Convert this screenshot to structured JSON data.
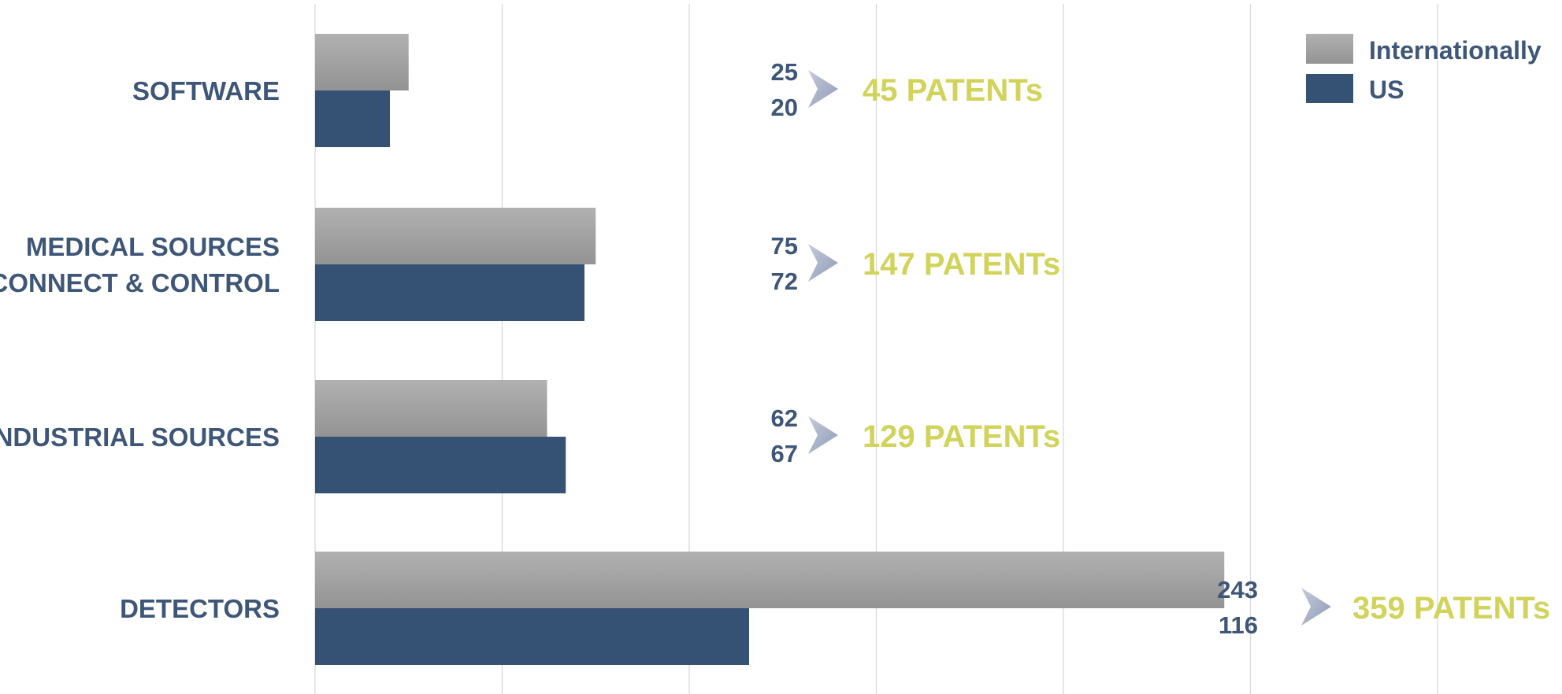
{
  "chart_data": {
    "type": "bar",
    "orientation": "horizontal",
    "categories": [
      [
        "SOFTWARE"
      ],
      [
        "MEDICAL SOURCES",
        "CONNECT & CONTROL"
      ],
      [
        "INDUSTRIAL SOURCES"
      ],
      [
        "DETECTORS"
      ]
    ],
    "series": [
      {
        "name": "Internationally",
        "values": [
          25,
          75,
          62,
          243
        ],
        "color": "#a3a3a3"
      },
      {
        "name": "US",
        "values": [
          20,
          72,
          67,
          116
        ],
        "color": "#355274"
      }
    ],
    "value_labels": [
      [
        "25",
        "20"
      ],
      [
        "75",
        "72"
      ],
      [
        "62",
        "67"
      ],
      [
        "243",
        "116"
      ]
    ],
    "totals": [
      "45 PATENTs",
      "147 PATENTs",
      "129 PATENTs",
      "359 PATENTs"
    ],
    "xlim": [
      0,
      300
    ],
    "x_gridlines": [
      0,
      50,
      100,
      150,
      200,
      250,
      300
    ],
    "grid": true,
    "legend_position": "top-right",
    "colors": {
      "label_text": "#3e5677",
      "totals_text": "#d1d35b",
      "arrow": "#a9b3c9",
      "gridline": "#d9d9d9"
    }
  }
}
